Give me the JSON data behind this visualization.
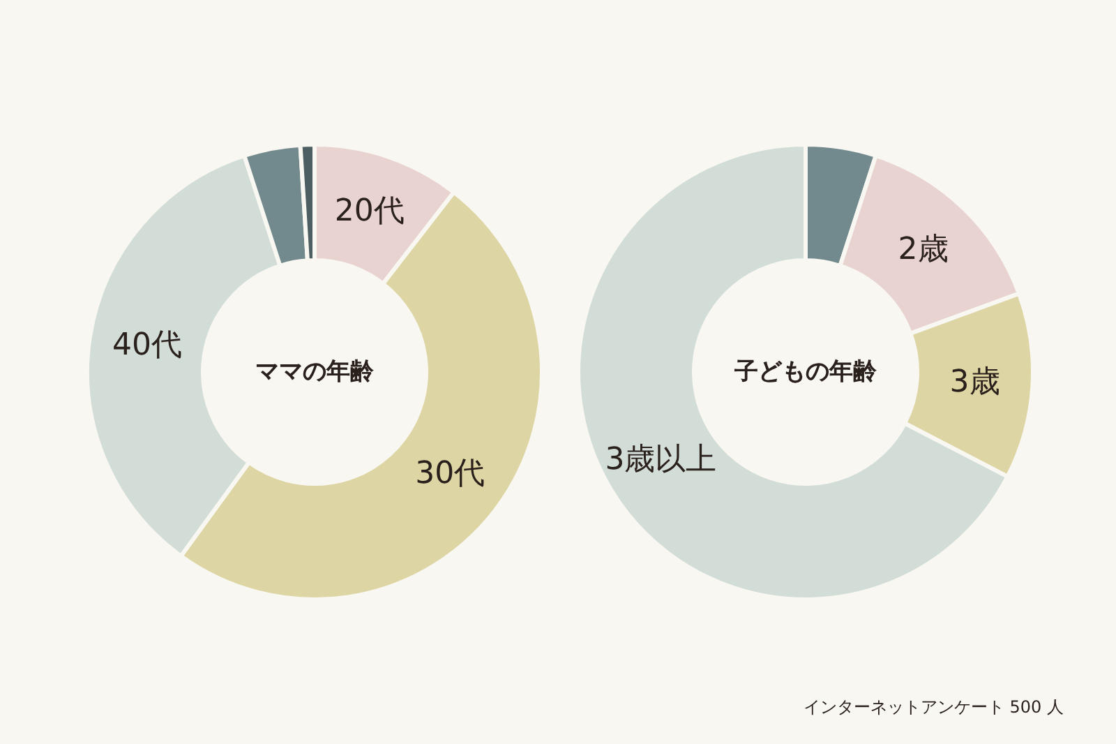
{
  "chart_data": [
    {
      "type": "donut",
      "title": "ママの年齢",
      "categories": [
        "20代",
        "30代",
        "40代",
        null,
        null
      ],
      "values": [
        10.5,
        49.5,
        35,
        4,
        1
      ],
      "colors": [
        "#e8d3d1",
        "#ddd5a4",
        "#d3ddd8",
        "#728a8e",
        "#4d5f62"
      ]
    },
    {
      "type": "donut",
      "title": "子どもの年齢",
      "categories": [
        null,
        "2歳",
        "3歳",
        "3歳以上"
      ],
      "values": [
        5,
        14.4,
        13.2,
        67.4
      ],
      "colors": [
        "#728a8e",
        "#e8d3d1",
        "#ddd5a4",
        "#d3ddd8"
      ],
      "annotations": [
        "インターネットアンケート 500 人"
      ]
    }
  ]
}
